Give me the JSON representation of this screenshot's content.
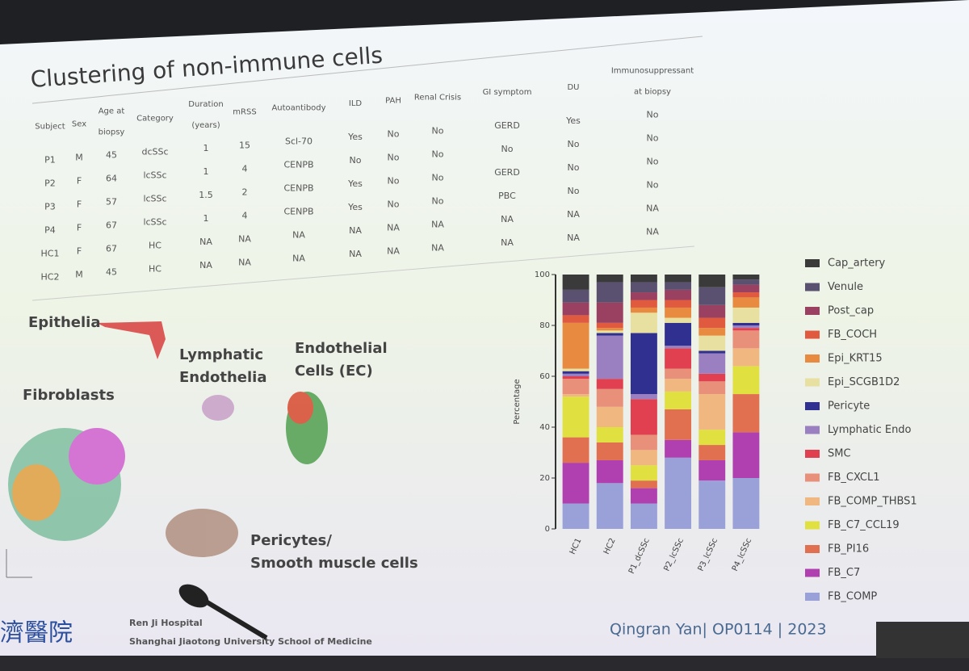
{
  "title": "Clustering of non-immune cells",
  "table": {
    "header": [
      [
        "Subject"
      ],
      [
        "Sex"
      ],
      [
        "Age at",
        "biopsy"
      ],
      [
        "Category"
      ],
      [
        "Duration",
        "(years)"
      ],
      [
        "mRSS"
      ],
      [
        "Autoantibody"
      ],
      [
        "ILD"
      ],
      [
        "PAH"
      ],
      [
        "Renal Crisis"
      ],
      [
        "GI symptom"
      ],
      [
        "DU"
      ],
      [
        "Immunosuppressant",
        "at biopsy"
      ]
    ],
    "rows": [
      [
        "P1",
        "M",
        "45",
        "dcSSc",
        "1",
        "15",
        "Scl-70",
        "Yes",
        "No",
        "No",
        "GERD",
        "Yes",
        "No"
      ],
      [
        "P2",
        "F",
        "64",
        "lcSSc",
        "1",
        "4",
        "CENPB",
        "No",
        "No",
        "No",
        "No",
        "No",
        "No"
      ],
      [
        "P3",
        "F",
        "57",
        "lcSSc",
        "1.5",
        "2",
        "CENPB",
        "Yes",
        "No",
        "No",
        "GERD",
        "No",
        "No"
      ],
      [
        "P4",
        "F",
        "67",
        "lcSSc",
        "1",
        "4",
        "CENPB",
        "Yes",
        "No",
        "No",
        "PBC",
        "No",
        "No"
      ],
      [
        "HC1",
        "F",
        "67",
        "HC",
        "NA",
        "NA",
        "NA",
        "NA",
        "NA",
        "NA",
        "NA",
        "NA",
        "NA"
      ],
      [
        "HC2",
        "M",
        "45",
        "HC",
        "NA",
        "NA",
        "NA",
        "NA",
        "NA",
        "NA",
        "NA",
        "NA",
        "NA"
      ]
    ]
  },
  "clusters": [
    [
      "Epithelia"
    ],
    [
      "Lymphatic",
      "Endothelia"
    ],
    [
      "Endothelial",
      "Cells (EC)"
    ],
    [
      "Fibroblasts"
    ],
    [
      "Pericytes/",
      "Smooth muscle cells"
    ]
  ],
  "footer": {
    "logo": "濟醫院",
    "hospital": "Ren Ji Hospital",
    "school": "Shanghai Jiaotong University School of Medicine",
    "credit": "Qingran Yan| OP0114 | 2023"
  },
  "chart_data": {
    "type": "stacked_bar",
    "y_label": "Percentage",
    "categories": [
      "HC1",
      "HC2",
      "P1_dcSSc",
      "P2_lcSSc",
      "P3_lcSSc",
      "P4_lcSSc"
    ],
    "ylim": [
      0,
      100
    ],
    "yticks": [
      0,
      20,
      40,
      60,
      80,
      100
    ],
    "series": [
      {
        "name": "FB_COMP",
        "color": "#9aa0d8",
        "values": [
          10,
          18,
          10,
          28,
          19,
          20
        ]
      },
      {
        "name": "FB_C7",
        "color": "#b040b0",
        "values": [
          16,
          9,
          6,
          7,
          8,
          18
        ]
      },
      {
        "name": "FB_PI16",
        "color": "#e07050",
        "values": [
          10,
          7,
          3,
          12,
          6,
          15
        ]
      },
      {
        "name": "FB_C7_CCL19",
        "color": "#e0e040",
        "values": [
          16,
          6,
          6,
          7,
          6,
          11
        ]
      },
      {
        "name": "FB_COMP_THBS1",
        "color": "#f0b880",
        "values": [
          1,
          8,
          6,
          5,
          14,
          7
        ]
      },
      {
        "name": "FB_CXCL1",
        "color": "#e8907a",
        "values": [
          6,
          7,
          6,
          4,
          5,
          7
        ]
      },
      {
        "name": "SMC",
        "color": "#e04050",
        "values": [
          1,
          4,
          14,
          8,
          3,
          1
        ]
      },
      {
        "name": "Lymphatic Endo",
        "color": "#9a80c0",
        "values": [
          1,
          17,
          2,
          1,
          8,
          1
        ]
      },
      {
        "name": "Pericyte",
        "color": "#303090",
        "values": [
          1,
          1,
          24,
          9,
          1,
          1
        ]
      },
      {
        "name": "Epi_SCGB1D2",
        "color": "#e8e0a0",
        "values": [
          1,
          1,
          8,
          2,
          6,
          6
        ]
      },
      {
        "name": "Epi_KRT15",
        "color": "#e88a40",
        "values": [
          18,
          1,
          2,
          4,
          3,
          4
        ]
      },
      {
        "name": "FB_COCH",
        "color": "#e05a40",
        "values": [
          3,
          2,
          3,
          3,
          4,
          2
        ]
      },
      {
        "name": "Post_cap",
        "color": "#9a4060",
        "values": [
          5,
          8,
          3,
          4,
          5,
          3
        ]
      },
      {
        "name": "Venule",
        "color": "#5a5070",
        "values": [
          5,
          8,
          4,
          3,
          7,
          2
        ]
      },
      {
        "name": "Cap_artery",
        "color": "#3a3a3a",
        "values": [
          6,
          3,
          3,
          3,
          5,
          2
        ]
      }
    ]
  }
}
